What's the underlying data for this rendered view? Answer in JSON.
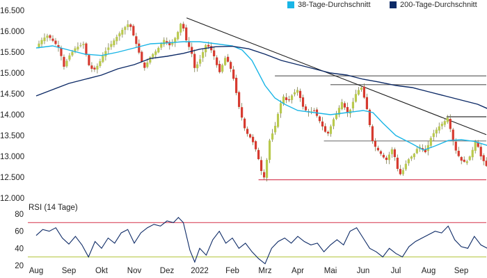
{
  "chart_data": {
    "type": "line",
    "legend": [
      {
        "name": "38-Tage-Durchschnitt",
        "color": "#19b5e6"
      },
      {
        "name": "200-Tage-Durchschnitt",
        "color": "#0d2a66"
      }
    ],
    "legend_position": "top-right",
    "x_ticks": [
      "Aug",
      "Sep",
      "Okt",
      "Nov",
      "Dez",
      "2022",
      "Feb",
      "Mrz",
      "Apr",
      "Mai",
      "Jun",
      "Jul",
      "Aug",
      "Sep"
    ],
    "price_panel": {
      "chart_type": "candlestick",
      "y_ticks": [
        "16.500",
        "16.000",
        "15.500",
        "15.000",
        "14.500",
        "14.000",
        "13.500",
        "13.000",
        "12.500",
        "12.000"
      ],
      "ylim": [
        12000,
        16500
      ],
      "grid": false,
      "candle_colors": {
        "up": "#b9c94d",
        "down": "#d63a2f"
      },
      "close_path": [
        {
          "x": 0.0,
          "y": 15620
        },
        {
          "x": 0.2,
          "y": 15820
        },
        {
          "x": 0.35,
          "y": 15900
        },
        {
          "x": 0.5,
          "y": 15780
        },
        {
          "x": 0.7,
          "y": 15600
        },
        {
          "x": 0.85,
          "y": 15150
        },
        {
          "x": 1.0,
          "y": 15400
        },
        {
          "x": 1.2,
          "y": 15600
        },
        {
          "x": 1.45,
          "y": 15700
        },
        {
          "x": 1.6,
          "y": 15200
        },
        {
          "x": 1.75,
          "y": 15050
        },
        {
          "x": 1.9,
          "y": 15200
        },
        {
          "x": 2.1,
          "y": 15500
        },
        {
          "x": 2.3,
          "y": 15700
        },
        {
          "x": 2.5,
          "y": 15900
        },
        {
          "x": 2.65,
          "y": 16050
        },
        {
          "x": 2.85,
          "y": 16200
        },
        {
          "x": 3.1,
          "y": 15600
        },
        {
          "x": 3.3,
          "y": 15100
        },
        {
          "x": 3.5,
          "y": 15400
        },
        {
          "x": 3.7,
          "y": 15550
        },
        {
          "x": 3.9,
          "y": 15800
        },
        {
          "x": 4.1,
          "y": 15650
        },
        {
          "x": 4.3,
          "y": 15900
        },
        {
          "x": 4.45,
          "y": 16250
        },
        {
          "x": 4.6,
          "y": 15750
        },
        {
          "x": 4.75,
          "y": 15500
        },
        {
          "x": 4.85,
          "y": 15100
        },
        {
          "x": 5.0,
          "y": 15300
        },
        {
          "x": 5.2,
          "y": 15700
        },
        {
          "x": 5.4,
          "y": 15500
        },
        {
          "x": 5.6,
          "y": 15000
        },
        {
          "x": 5.8,
          "y": 15400
        },
        {
          "x": 6.0,
          "y": 15000
        },
        {
          "x": 6.2,
          "y": 14200
        },
        {
          "x": 6.4,
          "y": 13600
        },
        {
          "x": 6.6,
          "y": 13400
        },
        {
          "x": 6.75,
          "y": 13100
        },
        {
          "x": 6.9,
          "y": 12600
        },
        {
          "x": 7.0,
          "y": 12450
        },
        {
          "x": 7.1,
          "y": 13300
        },
        {
          "x": 7.3,
          "y": 13700
        },
        {
          "x": 7.45,
          "y": 14200
        },
        {
          "x": 7.55,
          "y": 14450
        },
        {
          "x": 7.7,
          "y": 14300
        },
        {
          "x": 7.85,
          "y": 14500
        },
        {
          "x": 8.0,
          "y": 14600
        },
        {
          "x": 8.15,
          "y": 14200
        },
        {
          "x": 8.3,
          "y": 14050
        },
        {
          "x": 8.5,
          "y": 14100
        },
        {
          "x": 8.7,
          "y": 13800
        },
        {
          "x": 8.9,
          "y": 13500
        },
        {
          "x": 9.1,
          "y": 13900
        },
        {
          "x": 9.35,
          "y": 14300
        },
        {
          "x": 9.55,
          "y": 14000
        },
        {
          "x": 9.8,
          "y": 14550
        },
        {
          "x": 9.95,
          "y": 14650
        },
        {
          "x": 10.1,
          "y": 14200
        },
        {
          "x": 10.3,
          "y": 13300
        },
        {
          "x": 10.5,
          "y": 13100
        },
        {
          "x": 10.7,
          "y": 12900
        },
        {
          "x": 10.9,
          "y": 13200
        },
        {
          "x": 11.05,
          "y": 12700
        },
        {
          "x": 11.15,
          "y": 12550
        },
        {
          "x": 11.35,
          "y": 12900
        },
        {
          "x": 11.55,
          "y": 13050
        },
        {
          "x": 11.7,
          "y": 13250
        },
        {
          "x": 11.9,
          "y": 13100
        },
        {
          "x": 12.1,
          "y": 13500
        },
        {
          "x": 12.3,
          "y": 13700
        },
        {
          "x": 12.5,
          "y": 13850
        },
        {
          "x": 12.6,
          "y": 13950
        },
        {
          "x": 12.7,
          "y": 13500
        },
        {
          "x": 12.85,
          "y": 13100
        },
        {
          "x": 13.0,
          "y": 12900
        },
        {
          "x": 13.15,
          "y": 12850
        },
        {
          "x": 13.3,
          "y": 13050
        },
        {
          "x": 13.45,
          "y": 13400
        },
        {
          "x": 13.6,
          "y": 13000
        },
        {
          "x": 13.75,
          "y": 12800
        },
        {
          "x": 13.85,
          "y": 12650
        }
      ],
      "series": [
        {
          "name": "38-Tage-Durchschnitt",
          "color": "#19b5e6",
          "points": [
            {
              "x": 0.0,
              "y": 15600
            },
            {
              "x": 0.5,
              "y": 15650
            },
            {
              "x": 1.0,
              "y": 15550
            },
            {
              "x": 1.5,
              "y": 15450
            },
            {
              "x": 2.0,
              "y": 15420
            },
            {
              "x": 2.5,
              "y": 15500
            },
            {
              "x": 3.0,
              "y": 15600
            },
            {
              "x": 3.5,
              "y": 15700
            },
            {
              "x": 4.0,
              "y": 15720
            },
            {
              "x": 4.5,
              "y": 15750
            },
            {
              "x": 5.0,
              "y": 15750
            },
            {
              "x": 5.5,
              "y": 15700
            },
            {
              "x": 6.0,
              "y": 15650
            },
            {
              "x": 6.3,
              "y": 15550
            },
            {
              "x": 6.6,
              "y": 15300
            },
            {
              "x": 7.0,
              "y": 14700
            },
            {
              "x": 7.3,
              "y": 14400
            },
            {
              "x": 7.6,
              "y": 14250
            },
            {
              "x": 8.0,
              "y": 14100
            },
            {
              "x": 8.5,
              "y": 14050
            },
            {
              "x": 9.0,
              "y": 14000
            },
            {
              "x": 9.5,
              "y": 14050
            },
            {
              "x": 10.0,
              "y": 14100
            },
            {
              "x": 10.3,
              "y": 14050
            },
            {
              "x": 10.6,
              "y": 13800
            },
            {
              "x": 11.0,
              "y": 13500
            },
            {
              "x": 11.5,
              "y": 13300
            },
            {
              "x": 11.85,
              "y": 13150
            },
            {
              "x": 12.2,
              "y": 13250
            },
            {
              "x": 12.6,
              "y": 13380
            },
            {
              "x": 13.0,
              "y": 13400
            },
            {
              "x": 13.4,
              "y": 13360
            },
            {
              "x": 13.85,
              "y": 13250
            }
          ]
        },
        {
          "name": "200-Tage-Durchschnitt",
          "color": "#0d2a66",
          "points": [
            {
              "x": 0.0,
              "y": 14450
            },
            {
              "x": 0.5,
              "y": 14600
            },
            {
              "x": 1.0,
              "y": 14750
            },
            {
              "x": 1.5,
              "y": 14850
            },
            {
              "x": 2.0,
              "y": 14950
            },
            {
              "x": 2.5,
              "y": 15100
            },
            {
              "x": 3.0,
              "y": 15200
            },
            {
              "x": 3.5,
              "y": 15350
            },
            {
              "x": 4.0,
              "y": 15400
            },
            {
              "x": 4.5,
              "y": 15470
            },
            {
              "x": 5.0,
              "y": 15570
            },
            {
              "x": 5.5,
              "y": 15630
            },
            {
              "x": 6.0,
              "y": 15640
            },
            {
              "x": 6.5,
              "y": 15580
            },
            {
              "x": 7.0,
              "y": 15450
            },
            {
              "x": 7.5,
              "y": 15300
            },
            {
              "x": 8.0,
              "y": 15200
            },
            {
              "x": 8.5,
              "y": 15100
            },
            {
              "x": 9.0,
              "y": 15000
            },
            {
              "x": 9.5,
              "y": 14950
            },
            {
              "x": 10.0,
              "y": 14850
            },
            {
              "x": 10.5,
              "y": 14780
            },
            {
              "x": 11.0,
              "y": 14700
            },
            {
              "x": 11.5,
              "y": 14650
            },
            {
              "x": 12.0,
              "y": 14550
            },
            {
              "x": 12.5,
              "y": 14450
            },
            {
              "x": 13.0,
              "y": 14350
            },
            {
              "x": 13.5,
              "y": 14250
            },
            {
              "x": 13.85,
              "y": 14130
            }
          ]
        }
      ],
      "trend_lines": [
        {
          "color": "#1a1a1a",
          "from": {
            "x": 4.6,
            "y": 16320
          },
          "to": {
            "x": 14.0,
            "y": 13520
          }
        }
      ],
      "horizontal_lines": [
        {
          "color": "#555555",
          "y": 14930,
          "x_from": 7.3,
          "x_to": 14.0
        },
        {
          "color": "#555555",
          "y": 14720,
          "x_from": 9.0,
          "x_to": 14.0
        },
        {
          "color": "#333333",
          "y": 13950,
          "x_from": 12.55,
          "x_to": 14.0
        },
        {
          "color": "#777777",
          "y": 13370,
          "x_from": 8.8,
          "x_to": 14.0
        },
        {
          "color": "#d9485e",
          "y": 12440,
          "x_from": 6.8,
          "x_to": 14.0
        }
      ]
    },
    "rsi_panel": {
      "title": "RSI (14 Tage)",
      "y_ticks": [
        "80",
        "60",
        "40",
        "20"
      ],
      "ylim": [
        20,
        80
      ],
      "levels": [
        {
          "value": 70,
          "color": "#d9485e"
        },
        {
          "value": 30,
          "color": "#b9c94d"
        }
      ],
      "series": [
        {
          "name": "RSI (14 Tage)",
          "color": "#0d2a66",
          "points": [
            {
              "x": 0.0,
              "y": 55
            },
            {
              "x": 0.2,
              "y": 62
            },
            {
              "x": 0.4,
              "y": 60
            },
            {
              "x": 0.6,
              "y": 64
            },
            {
              "x": 0.8,
              "y": 52
            },
            {
              "x": 1.0,
              "y": 45
            },
            {
              "x": 1.2,
              "y": 54
            },
            {
              "x": 1.4,
              "y": 44
            },
            {
              "x": 1.6,
              "y": 30
            },
            {
              "x": 1.8,
              "y": 48
            },
            {
              "x": 2.0,
              "y": 40
            },
            {
              "x": 2.2,
              "y": 52
            },
            {
              "x": 2.4,
              "y": 46
            },
            {
              "x": 2.6,
              "y": 58
            },
            {
              "x": 2.8,
              "y": 62
            },
            {
              "x": 3.0,
              "y": 46
            },
            {
              "x": 3.2,
              "y": 58
            },
            {
              "x": 3.4,
              "y": 64
            },
            {
              "x": 3.6,
              "y": 68
            },
            {
              "x": 3.8,
              "y": 66
            },
            {
              "x": 4.0,
              "y": 72
            },
            {
              "x": 4.2,
              "y": 70
            },
            {
              "x": 4.35,
              "y": 76
            },
            {
              "x": 4.5,
              "y": 70
            },
            {
              "x": 4.7,
              "y": 38
            },
            {
              "x": 4.85,
              "y": 24
            },
            {
              "x": 5.0,
              "y": 40
            },
            {
              "x": 5.2,
              "y": 32
            },
            {
              "x": 5.4,
              "y": 50
            },
            {
              "x": 5.6,
              "y": 60
            },
            {
              "x": 5.8,
              "y": 46
            },
            {
              "x": 6.0,
              "y": 52
            },
            {
              "x": 6.2,
              "y": 40
            },
            {
              "x": 6.4,
              "y": 46
            },
            {
              "x": 6.6,
              "y": 36
            },
            {
              "x": 6.8,
              "y": 28
            },
            {
              "x": 7.0,
              "y": 22
            },
            {
              "x": 7.2,
              "y": 40
            },
            {
              "x": 7.4,
              "y": 48
            },
            {
              "x": 7.6,
              "y": 52
            },
            {
              "x": 7.8,
              "y": 46
            },
            {
              "x": 8.0,
              "y": 54
            },
            {
              "x": 8.2,
              "y": 48
            },
            {
              "x": 8.4,
              "y": 44
            },
            {
              "x": 8.6,
              "y": 46
            },
            {
              "x": 8.8,
              "y": 36
            },
            {
              "x": 9.0,
              "y": 44
            },
            {
              "x": 9.2,
              "y": 50
            },
            {
              "x": 9.4,
              "y": 44
            },
            {
              "x": 9.6,
              "y": 60
            },
            {
              "x": 9.8,
              "y": 64
            },
            {
              "x": 10.0,
              "y": 52
            },
            {
              "x": 10.2,
              "y": 40
            },
            {
              "x": 10.4,
              "y": 36
            },
            {
              "x": 10.6,
              "y": 30
            },
            {
              "x": 10.8,
              "y": 40
            },
            {
              "x": 11.0,
              "y": 34
            },
            {
              "x": 11.2,
              "y": 30
            },
            {
              "x": 11.4,
              "y": 42
            },
            {
              "x": 11.6,
              "y": 48
            },
            {
              "x": 11.8,
              "y": 52
            },
            {
              "x": 12.0,
              "y": 56
            },
            {
              "x": 12.2,
              "y": 60
            },
            {
              "x": 12.4,
              "y": 58
            },
            {
              "x": 12.6,
              "y": 66
            },
            {
              "x": 12.8,
              "y": 50
            },
            {
              "x": 13.0,
              "y": 42
            },
            {
              "x": 13.2,
              "y": 40
            },
            {
              "x": 13.4,
              "y": 54
            },
            {
              "x": 13.6,
              "y": 44
            },
            {
              "x": 13.8,
              "y": 40
            },
            {
              "x": 13.9,
              "y": 38
            }
          ]
        }
      ]
    }
  }
}
